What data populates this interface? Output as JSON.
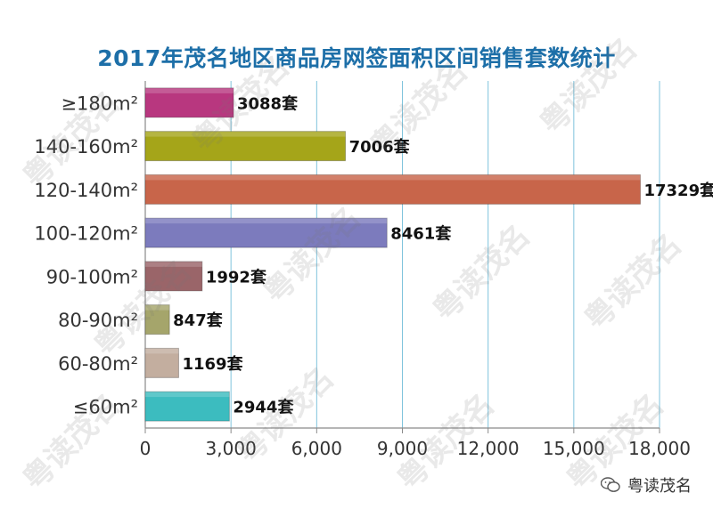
{
  "title": "2017年茂名地区商品房网签面积区间销售套数统计",
  "watermark": "粤读茂名",
  "brand": "粤读茂名",
  "brand_icon": "wechat-icon",
  "chart_data": {
    "type": "bar",
    "orientation": "horizontal",
    "title": "2017年茂名地区商品房网签面积区间销售套数统计",
    "categories": [
      "≥180m²",
      "140-160m²",
      "120-140m²",
      "100-120m²",
      "90-100m²",
      "80-90m²",
      "60-80m²",
      "≤60m²"
    ],
    "values": [
      3088,
      7006,
      17329,
      8461,
      1992,
      847,
      1169,
      2944
    ],
    "value_labels": [
      "3088套",
      "7006套",
      "17329套",
      "8461套",
      "1992套",
      "847套",
      "1169套",
      "2944套"
    ],
    "colors": [
      "#b8377f",
      "#a5a519",
      "#c8654a",
      "#7c7bbd",
      "#9a6569",
      "#a5a56b",
      "#c3ae9f",
      "#3cbcbf"
    ],
    "xticks": [
      "0",
      "3,000",
      "6,000",
      "9,000",
      "12,000",
      "15,000",
      "18,000"
    ],
    "xlim": [
      0,
      18000
    ],
    "grid": true
  }
}
